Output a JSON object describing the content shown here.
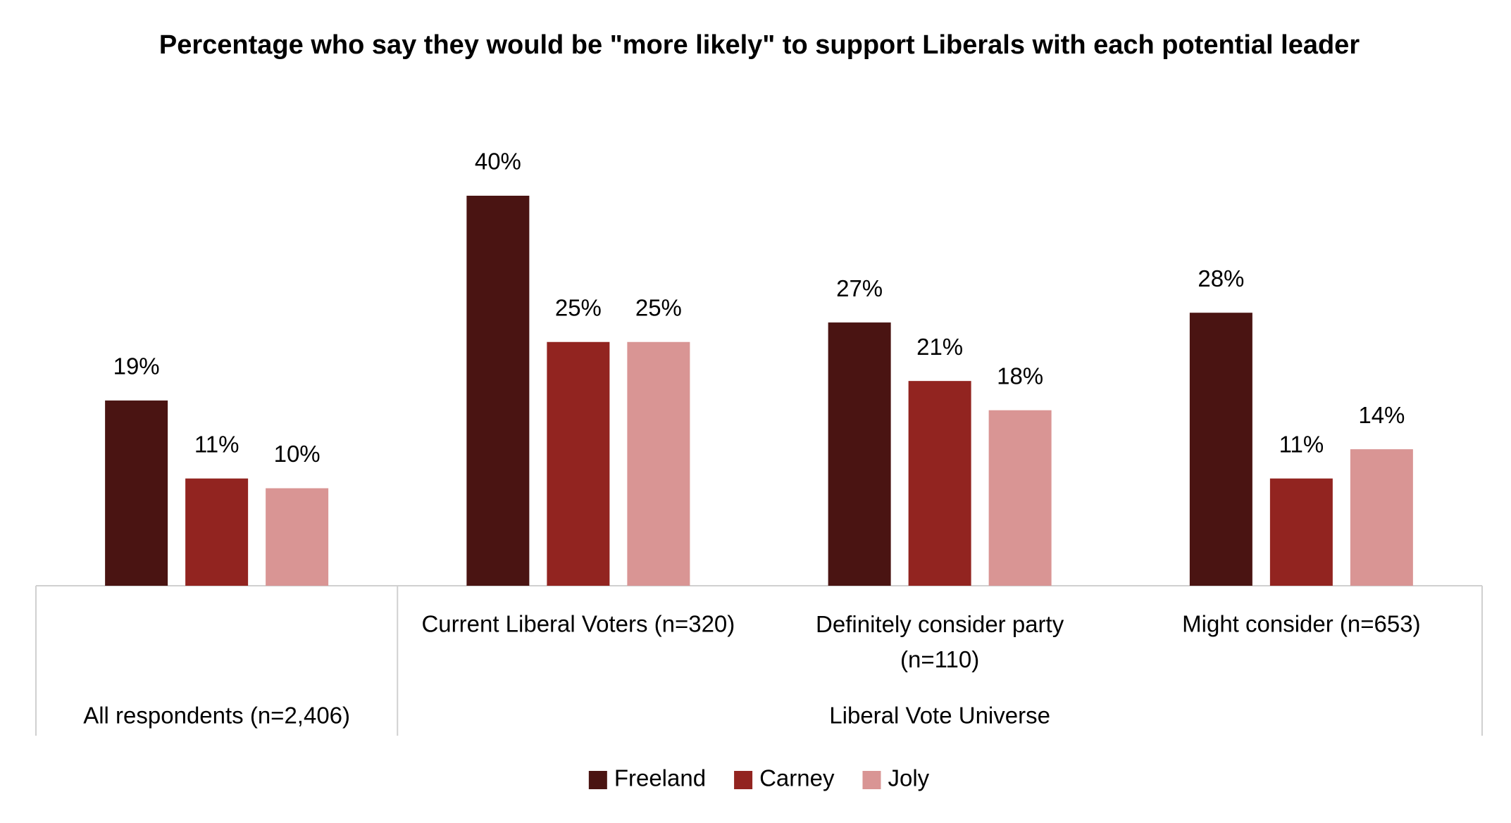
{
  "chart_data": {
    "type": "bar",
    "title": "Percentage who say they would be \"more likely\" to support Liberals with each potential leader",
    "groups": [
      {
        "label": "All respondents (n=2,406)",
        "categories": [
          null
        ]
      },
      {
        "label": "Liberal Vote Universe",
        "categories": [
          "Current Liberal Voters (n=320)",
          "Definitely consider party (n=110)",
          "Might consider (n=653)"
        ]
      }
    ],
    "series": [
      {
        "name": "Freeland",
        "color": "#4a1412",
        "values": [
          19,
          40,
          27,
          28
        ],
        "value_labels": [
          "19%",
          "40%",
          "27%",
          "28%"
        ]
      },
      {
        "name": "Carney",
        "color": "#922420",
        "values": [
          11,
          25,
          21,
          11
        ],
        "value_labels": [
          "11%",
          "25%",
          "21%",
          "11%"
        ]
      },
      {
        "name": "Joly",
        "color": "#d99594",
        "values": [
          10,
          25,
          18,
          14
        ],
        "value_labels": [
          "10%",
          "25%",
          "18%",
          "14%"
        ]
      }
    ],
    "legend": "bottom"
  }
}
